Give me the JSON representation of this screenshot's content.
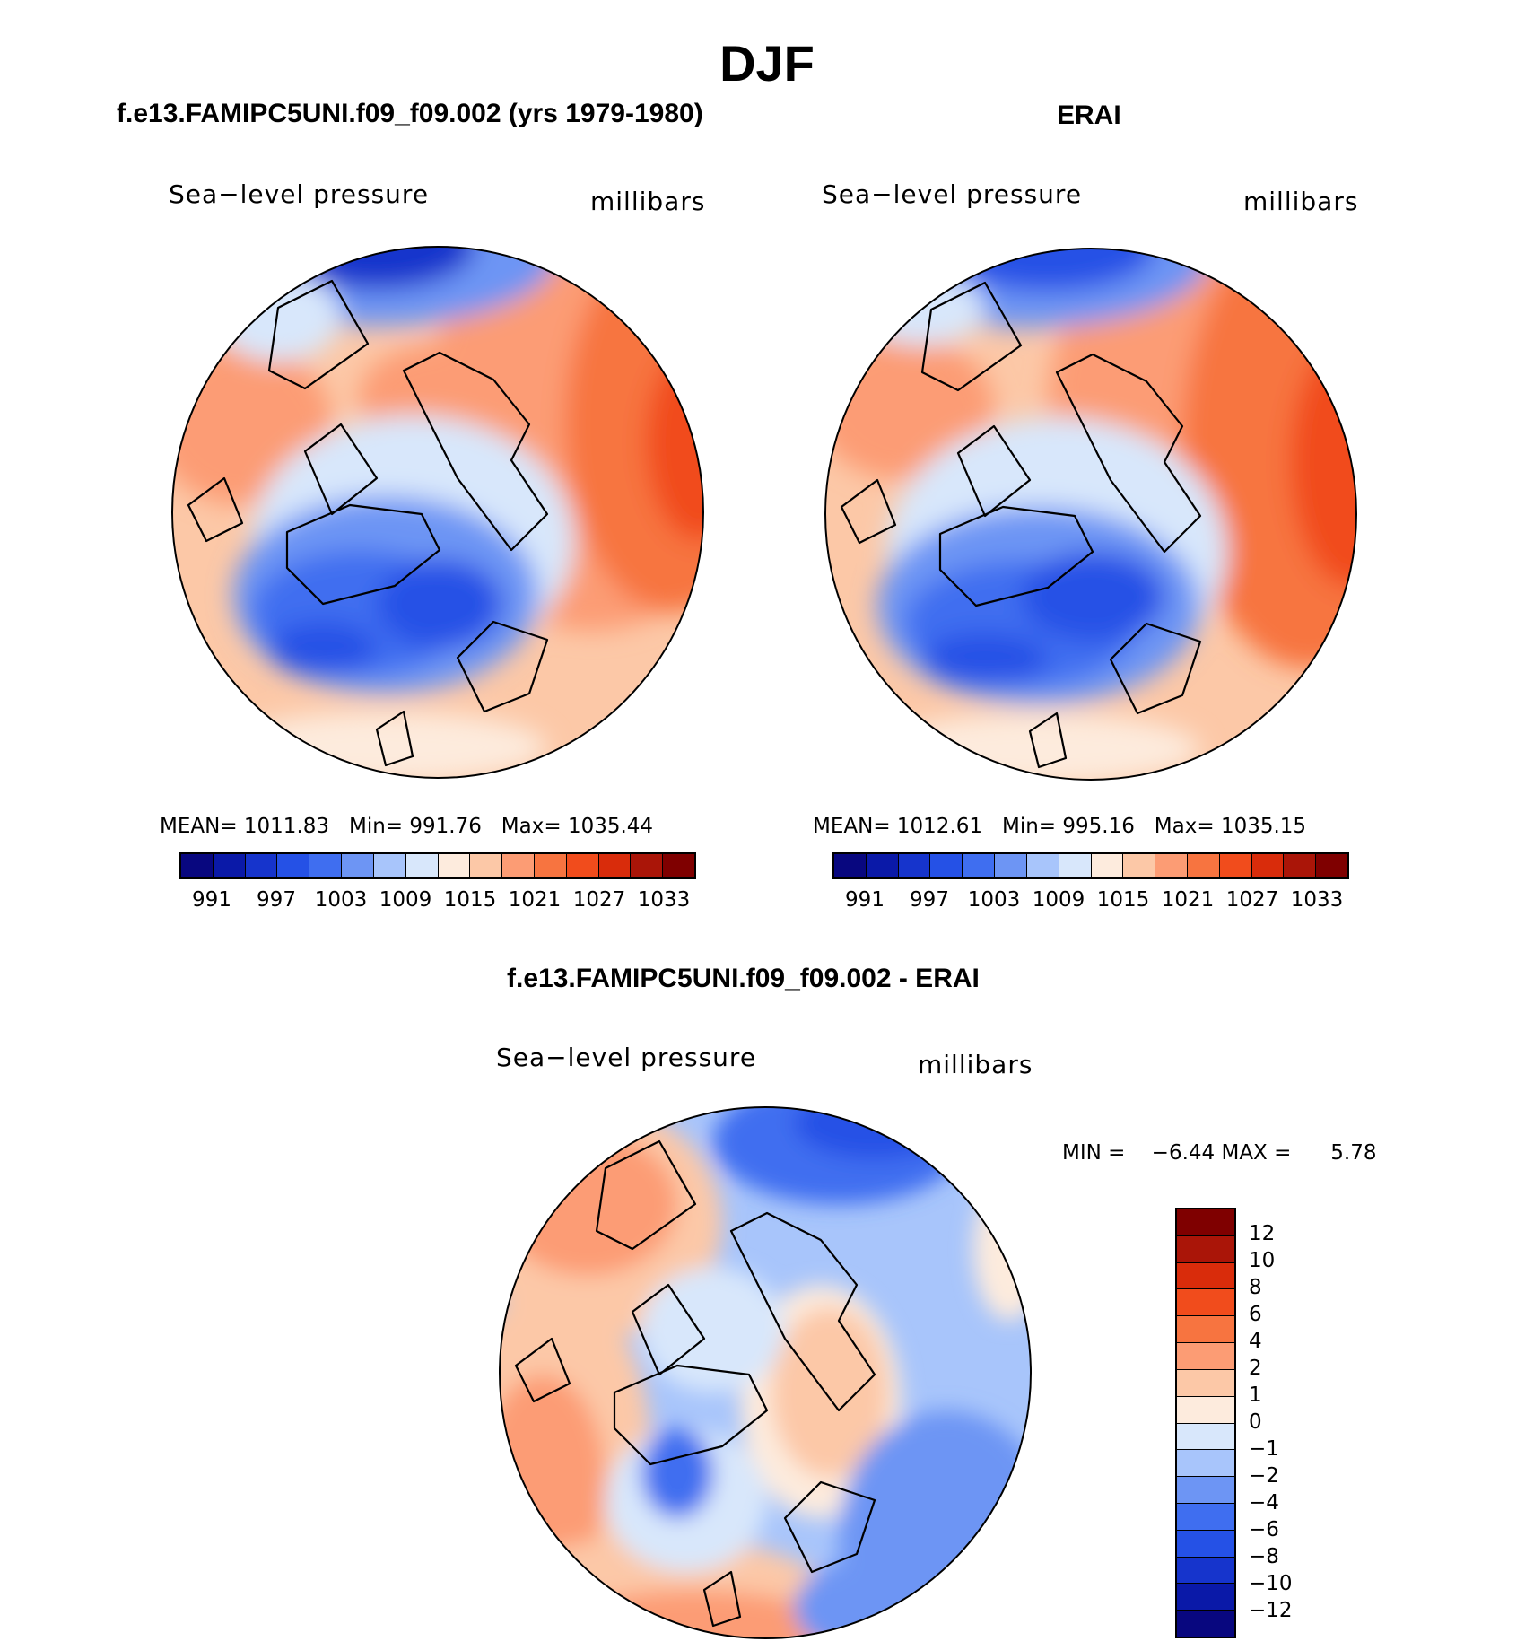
{
  "title": "DJF",
  "panel1": {
    "title": "f.e13.FAMIPC5UNI.f09_f09.002 (yrs 1979-1980)",
    "variable": "Sea−level pressure",
    "units": "millibars",
    "stats": {
      "mean_label": "MEAN=",
      "mean": "1011.83",
      "min_label": "Min=",
      "min": "991.76",
      "max_label": "Max=",
      "max": "1035.44"
    }
  },
  "panel2": {
    "title": "ERAI",
    "variable": "Sea−level pressure",
    "units": "millibars",
    "stats": {
      "mean_label": "MEAN=",
      "mean": "1012.61",
      "min_label": "Min=",
      "min": "995.16",
      "max_label": "Max=",
      "max": "1035.15"
    }
  },
  "colorbar_abs": {
    "colors": [
      "#08077f",
      "#0a19a8",
      "#1634cc",
      "#2551e6",
      "#3f6ef0",
      "#6d95f4",
      "#a8c5fb",
      "#d8e7fb",
      "#fdebdd",
      "#fcc8a7",
      "#fc9c74",
      "#f77440",
      "#f14c1c",
      "#d92c0b",
      "#aa1508",
      "#7f0000"
    ],
    "labels": [
      "991",
      "997",
      "1003",
      "1009",
      "1015",
      "1021",
      "1027",
      "1033"
    ]
  },
  "panel3": {
    "title": "f.e13.FAMIPC5UNI.f09_f09.002 - ERAI",
    "variable": "Sea−level pressure",
    "units": "millibars",
    "stats": {
      "min_label": "MIN =",
      "min": "−6.44",
      "max_label": "MAX =",
      "max": "5.78"
    }
  },
  "colorbar_diff": {
    "colors": [
      "#7f0000",
      "#aa1508",
      "#d92c0b",
      "#f14c1c",
      "#f77440",
      "#fc9c74",
      "#fcc8a7",
      "#fdebdd",
      "#d8e7fb",
      "#a8c5fb",
      "#6d95f4",
      "#3f6ef0",
      "#2551e6",
      "#1634cc",
      "#0a19a8",
      "#08077f"
    ],
    "labels": [
      "12",
      "10",
      "8",
      "6",
      "4",
      "2",
      "1",
      "0",
      "−1",
      "−2",
      "−4",
      "−6",
      "−8",
      "−10",
      "−12"
    ]
  }
}
